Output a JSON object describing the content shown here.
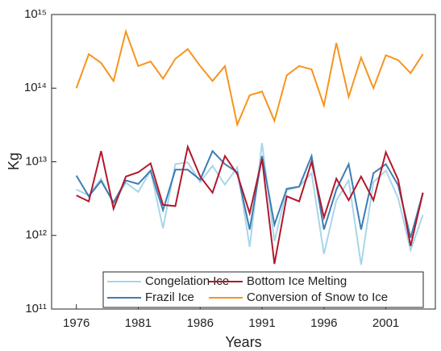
{
  "chart_data": {
    "type": "line",
    "x": [
      1976,
      1977,
      1978,
      1979,
      1980,
      1981,
      1982,
      1983,
      1984,
      1985,
      1986,
      1987,
      1988,
      1989,
      1990,
      1991,
      1992,
      1993,
      1994,
      1995,
      1996,
      1997,
      1998,
      1999,
      2000,
      2001,
      2002,
      2003,
      2004
    ],
    "x_label": "Years",
    "y_label": "Kg",
    "xlim": [
      1974,
      2005
    ],
    "xticks": [
      1976,
      1981,
      1986,
      1991,
      1996,
      2001
    ],
    "ylim": [
      100000000000.0,
      1000000000000000.0
    ],
    "yticks": [
      {
        "value": 100000000000.0,
        "label": "10¹¹"
      },
      {
        "value": 1000000000000.0,
        "label": "10¹²"
      },
      {
        "value": 10000000000000.0,
        "label": "10¹³"
      },
      {
        "value": 100000000000000.0,
        "label": "10¹⁴"
      },
      {
        "value": 1000000000000000.0,
        "label": "10¹⁵"
      }
    ],
    "log_y": true,
    "legend": "lower right",
    "series": [
      {
        "name": "Congelation Ice",
        "color": "#a8d6e8",
        "values": [
          4200000000000.0,
          3500000000000.0,
          5900000000000.0,
          2700000000000.0,
          5200000000000.0,
          3900000000000.0,
          7600000000000.0,
          1250000000000.0,
          9300000000000.0,
          9800000000000.0,
          5300000000000.0,
          8800000000000.0,
          4900000000000.0,
          8400000000000.0,
          700000000000.0,
          18000000000000.0,
          840000000000.0,
          4100000000000.0,
          4600000000000.0,
          7000000000000.0,
          560000000000.0,
          3000000000000.0,
          5600000000000.0,
          400000000000.0,
          5300000000000.0,
          7600000000000.0,
          3200000000000.0,
          630000000000.0,
          1900000000000.0
        ]
      },
      {
        "name": "Frazil Ice",
        "color": "#3d7db3",
        "values": [
          6500000000000.0,
          3400000000000.0,
          5500000000000.0,
          2800000000000.0,
          5600000000000.0,
          5000000000000.0,
          7600000000000.0,
          2200000000000.0,
          7800000000000.0,
          7800000000000.0,
          5700000000000.0,
          14000000000000.0,
          9300000000000.0,
          7200000000000.0,
          1200000000000.0,
          12000000000000.0,
          1400000000000.0,
          4300000000000.0,
          4600000000000.0,
          12000000000000.0,
          1200000000000.0,
          4200000000000.0,
          9300000000000.0,
          1200000000000.0,
          7000000000000.0,
          9300000000000.0,
          4800000000000.0,
          930000000000.0,
          3800000000000.0
        ]
      },
      {
        "name": "Bottom Ice Melting",
        "color": "#b2182b",
        "values": [
          3500000000000.0,
          2900000000000.0,
          14000000000000.0,
          2300000000000.0,
          6300000000000.0,
          7200000000000.0,
          9500000000000.0,
          2600000000000.0,
          2500000000000.0,
          16000000000000.0,
          6300000000000.0,
          3800000000000.0,
          12000000000000.0,
          6800000000000.0,
          2000000000000.0,
          11000000000000.0,
          410000000000.0,
          3400000000000.0,
          2900000000000.0,
          10000000000000.0,
          1750000000000.0,
          5900000000000.0,
          3000000000000.0,
          6300000000000.0,
          3000000000000.0,
          13500000000000.0,
          5700000000000.0,
          720000000000.0,
          3800000000000.0
        ]
      },
      {
        "name": "Conversion of Snow to Ice",
        "color": "#f7941d",
        "values": [
          100000000000000.0,
          290000000000000.0,
          220000000000000.0,
          125000000000000.0,
          590000000000000.0,
          200000000000000.0,
          230000000000000.0,
          135000000000000.0,
          250000000000000.0,
          340000000000000.0,
          200000000000000.0,
          125000000000000.0,
          200000000000000.0,
          32000000000000.0,
          80000000000000.0,
          90000000000000.0,
          36000000000000.0,
          150000000000000.0,
          200000000000000.0,
          180000000000000.0,
          58000000000000.0,
          410000000000000.0,
          76000000000000.0,
          260000000000000.0,
          100000000000000.0,
          280000000000000.0,
          240000000000000.0,
          160000000000000.0,
          290000000000000.0
        ]
      }
    ]
  }
}
